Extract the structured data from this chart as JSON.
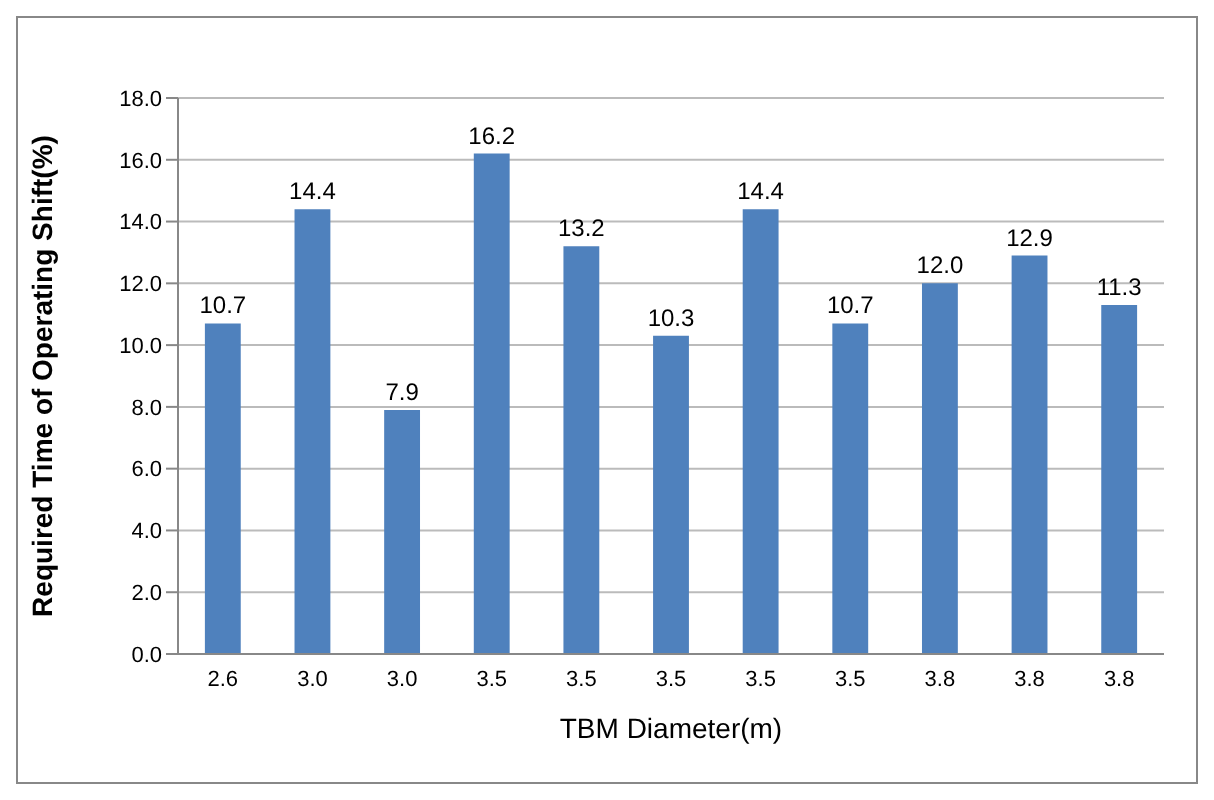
{
  "chart_data": {
    "type": "bar",
    "xlabel": "TBM Diameter(m)",
    "ylabel": "Required Time of Operating Shift(%)",
    "categories": [
      "2.6",
      "3.0",
      "3.0",
      "3.5",
      "3.5",
      "3.5",
      "3.5",
      "3.5",
      "3.8",
      "3.8",
      "3.8"
    ],
    "values": [
      10.7,
      14.4,
      7.9,
      16.2,
      13.2,
      10.3,
      14.4,
      10.7,
      12.0,
      12.9,
      11.3
    ],
    "value_labels": [
      "10.7",
      "14.4",
      "7.9",
      "16.2",
      "13.2",
      "10.3",
      "14.4",
      "10.7",
      "12.0",
      "12.9",
      "11.3"
    ],
    "color": "#4f81bd",
    "ylim": [
      0,
      18
    ],
    "yticks": [
      {
        "value": 0,
        "label": "0.0"
      },
      {
        "value": 2,
        "label": "2.0"
      },
      {
        "value": 4,
        "label": "4.0"
      },
      {
        "value": 6,
        "label": "6.0"
      },
      {
        "value": 8,
        "label": "8.0"
      },
      {
        "value": 10,
        "label": "10.0"
      },
      {
        "value": 12,
        "label": "12.0"
      },
      {
        "value": 14,
        "label": "14.0"
      },
      {
        "value": 16,
        "label": "16.0"
      },
      {
        "value": 18,
        "label": "18.0"
      }
    ],
    "grid": "y"
  }
}
